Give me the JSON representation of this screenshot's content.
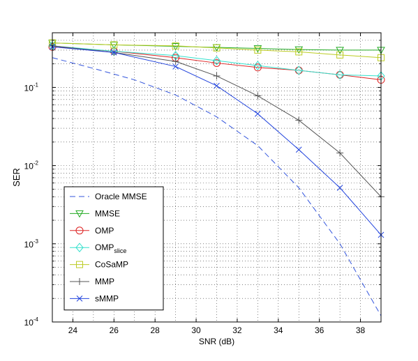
{
  "chart_data": {
    "type": "line",
    "xlabel": "SNR (dB)",
    "ylabel": "SER",
    "xlim": [
      23,
      39
    ],
    "ylim": [
      0.0001,
      0.5
    ],
    "y_scale": "log",
    "grid": "dotted-major-and-minor",
    "legend_position": "bottom-left",
    "x_ticks": [
      24,
      26,
      28,
      30,
      32,
      34,
      36,
      38
    ],
    "y_ticks": [
      {
        "value": 0.0001,
        "base": "10",
        "exp": "-4"
      },
      {
        "value": 0.001,
        "base": "10",
        "exp": "-3"
      },
      {
        "value": 0.01,
        "base": "10",
        "exp": "-2"
      },
      {
        "value": 0.1,
        "base": "10",
        "exp": "-1"
      }
    ],
    "series": [
      {
        "name": "Oracle MMSE",
        "name_sub": "",
        "color": "#3355dd",
        "dash": "8,5",
        "marker": "none",
        "x": [
          23,
          25,
          27,
          29,
          31,
          33,
          35,
          37,
          39
        ],
        "y": [
          0.24,
          0.175,
          0.125,
          0.08,
          0.042,
          0.018,
          0.0052,
          0.001,
          0.00012
        ]
      },
      {
        "name": "MMSE",
        "name_sub": "",
        "color": "#22aa22",
        "dash": "",
        "marker": "triangle-down",
        "x": [
          23,
          26,
          29,
          31,
          33,
          35,
          37,
          39
        ],
        "y": [
          0.37,
          0.35,
          0.335,
          0.325,
          0.315,
          0.305,
          0.3,
          0.3
        ]
      },
      {
        "name": "OMP",
        "name_sub": "",
        "color": "#dd2222",
        "dash": "",
        "marker": "circle",
        "x": [
          23,
          26,
          29,
          31,
          33,
          35,
          37,
          39
        ],
        "y": [
          0.33,
          0.29,
          0.24,
          0.205,
          0.18,
          0.165,
          0.145,
          0.125
        ]
      },
      {
        "name": "OMP",
        "name_sub": "slice",
        "color": "#33e0cc",
        "dash": "",
        "marker": "diamond",
        "x": [
          23,
          26,
          29,
          31,
          33,
          35,
          37,
          39
        ],
        "y": [
          0.34,
          0.29,
          0.255,
          0.22,
          0.19,
          0.165,
          0.145,
          0.14
        ]
      },
      {
        "name": "CoSaMP",
        "name_sub": "",
        "color": "#bbcc22",
        "dash": "",
        "marker": "square",
        "x": [
          23,
          26,
          29,
          31,
          33,
          35,
          37,
          39
        ],
        "y": [
          0.37,
          0.35,
          0.34,
          0.32,
          0.3,
          0.285,
          0.26,
          0.24
        ]
      },
      {
        "name": "MMP",
        "name_sub": "",
        "color": "#555555",
        "dash": "",
        "marker": "plus",
        "x": [
          23,
          26,
          29,
          31,
          33,
          35,
          37,
          39
        ],
        "y": [
          0.34,
          0.28,
          0.215,
          0.14,
          0.078,
          0.038,
          0.0145,
          0.004
        ]
      },
      {
        "name": "sMMP",
        "name_sub": "",
        "color": "#2244dd",
        "dash": "",
        "marker": "x",
        "x": [
          23,
          26,
          29,
          31,
          33,
          35,
          37,
          39
        ],
        "y": [
          0.33,
          0.28,
          0.185,
          0.105,
          0.046,
          0.016,
          0.0052,
          0.0013
        ]
      }
    ]
  }
}
